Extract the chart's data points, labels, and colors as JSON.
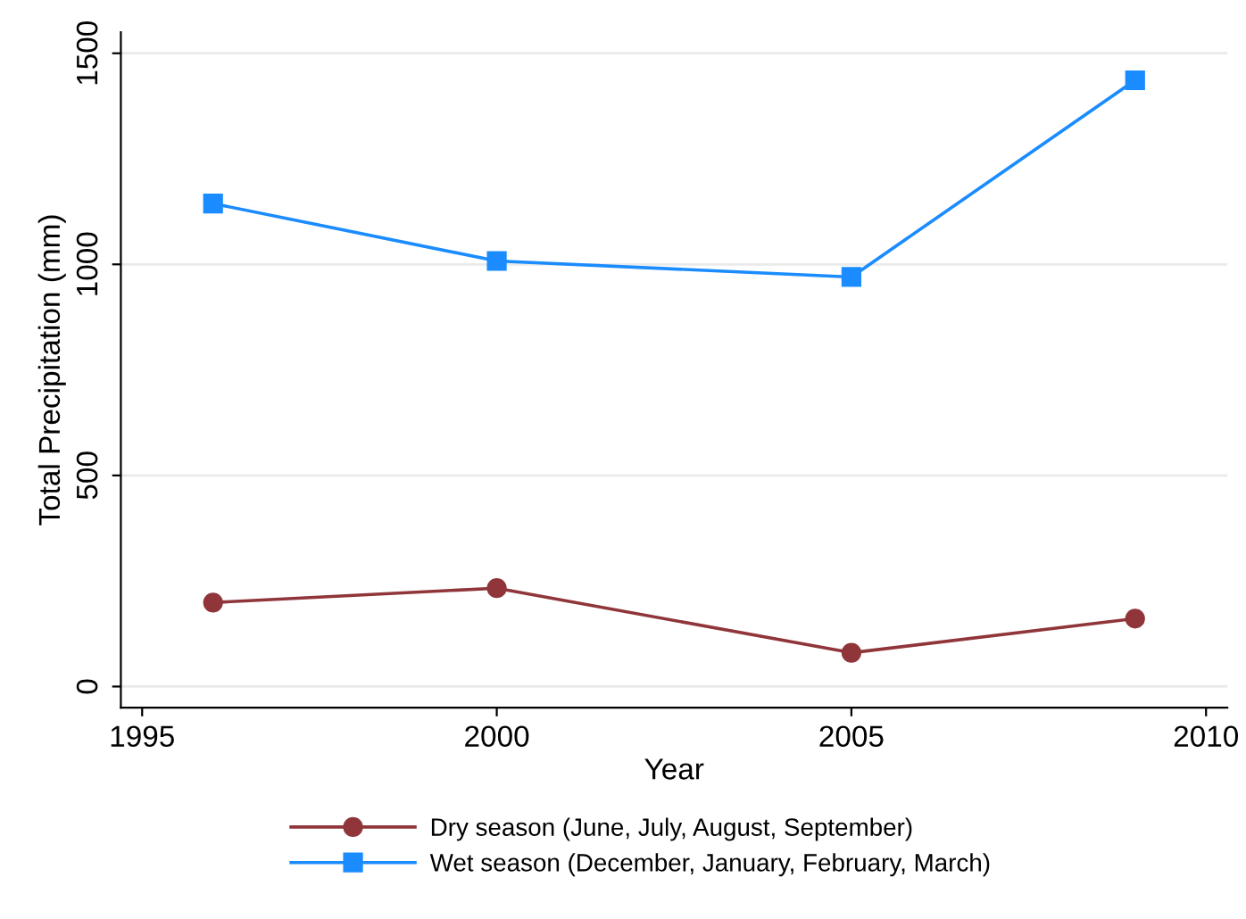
{
  "chart_data": {
    "type": "line",
    "xlabel": "Year",
    "ylabel": "Total Precipitation (mm)",
    "xlim": [
      1994.7,
      2010.3
    ],
    "xticks": [
      1995,
      2000,
      2005,
      2010
    ],
    "ylim": [
      -50,
      1550
    ],
    "yticks": [
      0,
      500,
      1000,
      1500
    ],
    "grid": "y",
    "legend": "bottom",
    "series": [
      {
        "name": "Dry season (June, July, August, September)",
        "color": "#903539",
        "marker": "circle",
        "x": [
          1996,
          2000,
          2005,
          2009
        ],
        "values": [
          199,
          233,
          80,
          161
        ]
      },
      {
        "name": "Wet season (December, January, February, March)",
        "color": "#1a8cff",
        "marker": "square",
        "x": [
          1996,
          2000,
          2005,
          2009
        ],
        "values": [
          1144,
          1008,
          970,
          1436
        ]
      }
    ]
  }
}
